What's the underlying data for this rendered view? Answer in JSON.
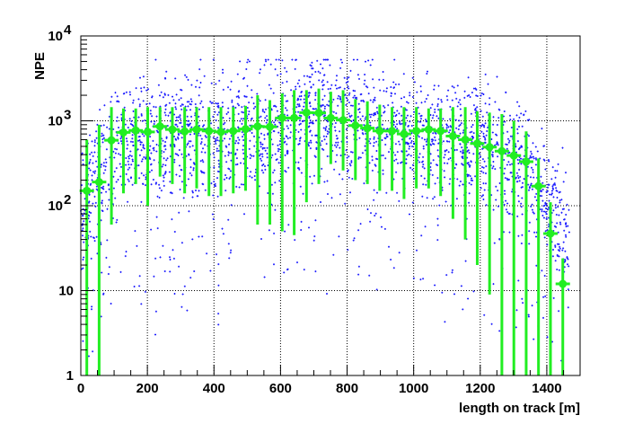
{
  "chart_data": {
    "type": "scatter",
    "title": "",
    "xlabel": "length on track [m]",
    "ylabel": "NPE",
    "xlim": [
      0,
      1500
    ],
    "ylim": [
      1,
      10000
    ],
    "yscale": "log",
    "grid": true,
    "x_ticks": [
      {
        "value": 0,
        "label": "0"
      },
      {
        "value": 200,
        "label": "200"
      },
      {
        "value": 400,
        "label": "400"
      },
      {
        "value": 600,
        "label": "600"
      },
      {
        "value": 800,
        "label": "800"
      },
      {
        "value": 1000,
        "label": "1000"
      },
      {
        "value": 1200,
        "label": "1200"
      },
      {
        "value": 1400,
        "label": "1400"
      }
    ],
    "y_ticks": [
      {
        "value": 1,
        "label": "1"
      },
      {
        "value": 10,
        "label": "10"
      },
      {
        "value": 100,
        "label": "10",
        "exp": "2"
      },
      {
        "value": 1000,
        "label": "10",
        "exp": "3"
      },
      {
        "value": 10000,
        "label": "10",
        "exp": "4"
      }
    ],
    "colors": {
      "scatter": "#1a1aff",
      "profile": "#22ee22",
      "frame": "#000000",
      "grid": "#000000"
    },
    "profile": {
      "x": [
        18,
        55,
        92,
        128,
        165,
        201,
        238,
        275,
        312,
        348,
        385,
        421,
        458,
        495,
        531,
        568,
        605,
        641,
        678,
        715,
        751,
        788,
        825,
        861,
        898,
        935,
        971,
        1008,
        1045,
        1081,
        1118,
        1155,
        1191,
        1228,
        1265,
        1301,
        1338,
        1375,
        1411,
        1448
      ],
      "y": [
        150,
        190,
        590,
        730,
        770,
        740,
        860,
        790,
        750,
        790,
        760,
        740,
        760,
        800,
        860,
        850,
        1080,
        1080,
        1250,
        1240,
        1080,
        1020,
        880,
        820,
        760,
        760,
        700,
        760,
        790,
        760,
        660,
        600,
        540,
        490,
        440,
        390,
        330,
        170,
        47,
        12
      ],
      "y_lo": [
        1,
        1,
        60,
        140,
        180,
        100,
        220,
        180,
        140,
        160,
        130,
        130,
        140,
        150,
        60,
        60,
        50,
        45,
        110,
        180,
        310,
        260,
        200,
        180,
        150,
        150,
        120,
        160,
        160,
        130,
        70,
        40,
        20,
        9,
        1,
        1,
        1,
        1,
        1,
        1
      ],
      "y_hi": [
        600,
        900,
        1450,
        1400,
        1400,
        1450,
        1450,
        1450,
        1450,
        1450,
        1450,
        1450,
        1450,
        1500,
        2000,
        1750,
        2100,
        2300,
        2300,
        2400,
        2200,
        2300,
        1800,
        1700,
        1550,
        1450,
        1450,
        1450,
        1400,
        1400,
        1450,
        1450,
        1300,
        1250,
        1200,
        1000,
        750,
        360,
        110,
        24
      ]
    },
    "scatter_model": {
      "n_points": 3400,
      "x_range": [
        0,
        1470
      ],
      "typical_npe_by_x": {
        "0": 90,
        "50": 250,
        "100": 550,
        "400": 700,
        "600": 900,
        "750": 1300,
        "900": 850,
        "1100": 650,
        "1250": 450,
        "1350": 250,
        "1470": 40
      },
      "log_spread": 0.35,
      "low_outlier_fraction": 0.08
    }
  }
}
